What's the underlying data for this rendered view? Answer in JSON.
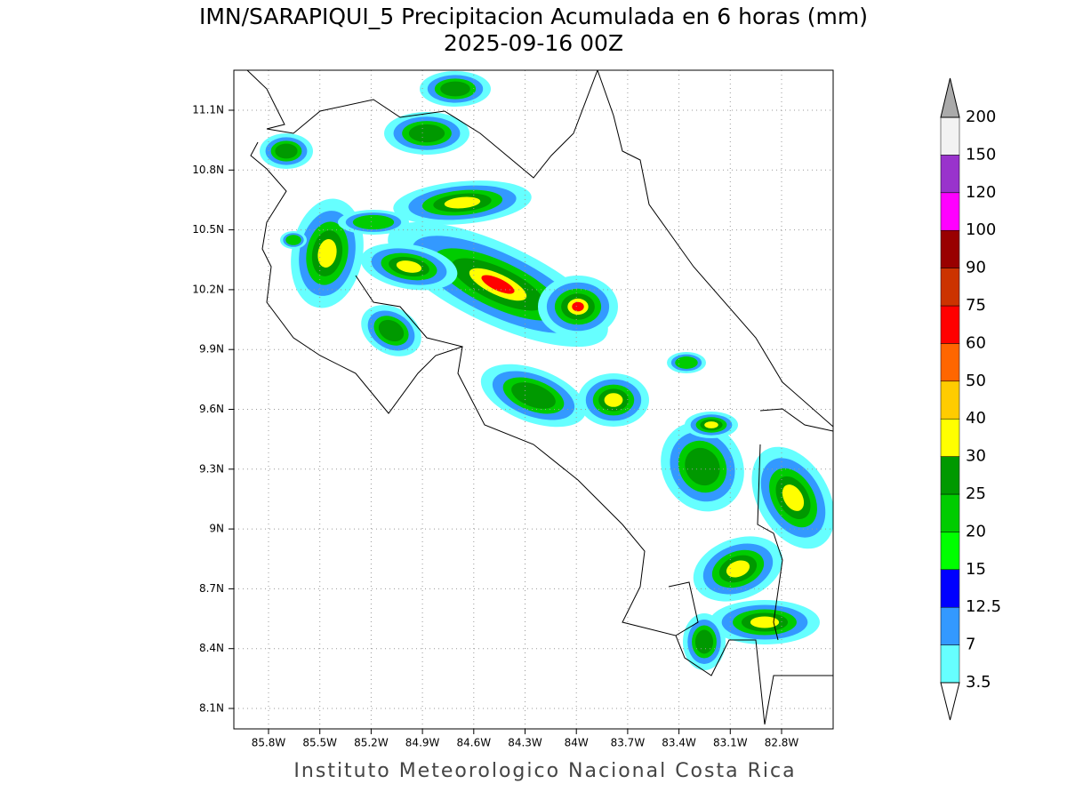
{
  "title": "IMN/SARAPIQUI_5 Precipitacion Acumulada en 6 horas (mm)",
  "subtitle": "2025-09-16 00Z",
  "footer": "Instituto Meteorologico Nacional Costa Rica",
  "map": {
    "lon_ticks": [
      "85.8W",
      "85.5W",
      "85.2W",
      "84.9W",
      "84.6W",
      "84.3W",
      "84W",
      "83.7W",
      "83.4W",
      "83.1W",
      "82.8W"
    ],
    "lat_ticks": [
      "11.1N",
      "10.8N",
      "10.5N",
      "10.2N",
      "9.9N",
      "9.6N",
      "9.3N",
      "9N",
      "8.7N",
      "8.4N",
      "8.1N"
    ],
    "grid": true
  },
  "legend": {
    "levels": [
      3.5,
      7,
      12.5,
      15,
      20,
      25,
      30,
      40,
      50,
      60,
      75,
      90,
      100,
      120,
      150,
      200
    ],
    "colors": [
      "#66ffff",
      "#3399ff",
      "#0000ff",
      "#00ff00",
      "#00cc00",
      "#009900",
      "#ffff00",
      "#ffcc00",
      "#ff6600",
      "#ff0000",
      "#cc3300",
      "#990000",
      "#ff00ff",
      "#9933cc",
      "#f2f2f2"
    ],
    "under_color": "#ffffff",
    "over_color": "#aaaaaa"
  }
}
